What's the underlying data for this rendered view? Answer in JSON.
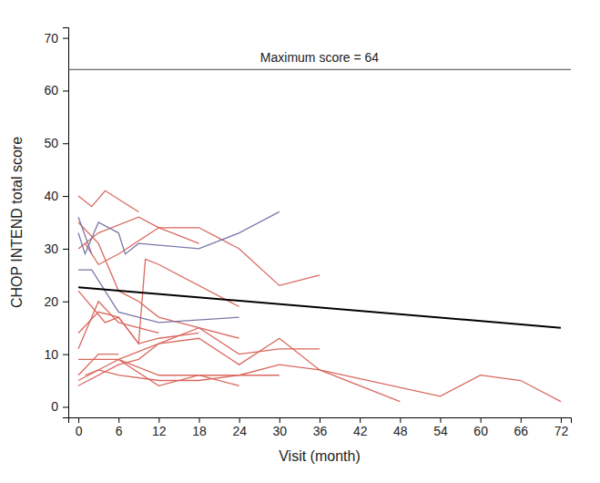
{
  "chart_data": {
    "type": "line",
    "x_label": "Visit (month)",
    "y_label": "CHOP INTEND total score",
    "xlim": [
      -1.5,
      73.5
    ],
    "xticks": [
      0,
      6,
      12,
      18,
      24,
      30,
      36,
      42,
      48,
      54,
      60,
      66,
      72
    ],
    "ylim": [
      -2,
      72
    ],
    "yticks": [
      0,
      10,
      20,
      30,
      40,
      50,
      60,
      70
    ],
    "grid": false,
    "annotations": [
      {
        "text": "Maximum score = 64",
        "y": 64
      }
    ],
    "series": [
      {
        "color": "#d9695f",
        "x": [
          0,
          2,
          4,
          9
        ],
        "values": [
          40,
          38,
          41,
          37
        ]
      },
      {
        "color": "#d9695f",
        "x": [
          1,
          3,
          6,
          12,
          18,
          24,
          30,
          36
        ],
        "values": [
          31,
          27,
          29,
          34,
          34,
          30,
          23,
          25
        ]
      },
      {
        "color": "#d9695f",
        "x": [
          0,
          3,
          9,
          12,
          18
        ],
        "values": [
          30,
          33,
          36,
          34,
          31
        ]
      },
      {
        "color": "#d9695f",
        "x": [
          0,
          3,
          6,
          9,
          12,
          18,
          24
        ],
        "values": [
          35,
          31,
          22,
          20,
          17,
          15,
          13
        ]
      },
      {
        "color": "#d9695f",
        "x": [
          0,
          4,
          6,
          9,
          10,
          12,
          24
        ],
        "values": [
          22,
          16,
          17,
          12,
          28,
          27,
          19
        ]
      },
      {
        "color": "#d9695f",
        "x": [
          0,
          3,
          6,
          12
        ],
        "values": [
          11,
          20,
          16,
          14
        ]
      },
      {
        "color": "#d9695f",
        "x": [
          0,
          3,
          6,
          9,
          12,
          18
        ],
        "values": [
          14,
          18,
          17,
          12,
          13,
          14
        ]
      },
      {
        "color": "#d9695f",
        "x": [
          0,
          6,
          12,
          18,
          24,
          30,
          36
        ],
        "values": [
          9,
          9,
          12,
          15,
          10,
          11,
          11
        ]
      },
      {
        "color": "#d9695f",
        "x": [
          0,
          6,
          9,
          12,
          18,
          24,
          30,
          36,
          48
        ],
        "values": [
          4,
          8,
          9,
          12,
          13,
          8,
          13,
          7,
          1
        ]
      },
      {
        "color": "#d9695f",
        "x": [
          6,
          12,
          24,
          30,
          36,
          54,
          60,
          66,
          72
        ],
        "values": [
          9,
          6,
          6,
          8,
          7,
          2,
          6,
          5,
          1
        ]
      },
      {
        "color": "#d9695f",
        "x": [
          0,
          3,
          6
        ],
        "values": [
          6,
          10,
          10
        ]
      },
      {
        "color": "#d9695f",
        "x": [
          0,
          6,
          12,
          18,
          24
        ],
        "values": [
          5,
          9,
          4,
          6,
          4
        ]
      },
      {
        "color": "#d9695f",
        "x": [
          1,
          3,
          6,
          12,
          18,
          24,
          30
        ],
        "values": [
          6,
          7,
          6,
          5,
          5,
          6,
          6
        ]
      },
      {
        "color": "#7b77a8",
        "x": [
          0,
          1,
          3,
          6,
          7,
          9,
          18,
          24,
          30
        ],
        "values": [
          33,
          29,
          35,
          33,
          29,
          31,
          30,
          33,
          37
        ]
      },
      {
        "color": "#7b77a8",
        "x": [
          0,
          2,
          6,
          9,
          12,
          24
        ],
        "values": [
          26,
          26,
          18,
          17,
          16,
          17
        ]
      },
      {
        "color": "#7b77a8",
        "x": [
          0,
          2
        ],
        "values": [
          36,
          29
        ]
      },
      {
        "color": "#000000",
        "x": [
          0,
          72
        ],
        "values": [
          22.7,
          15
        ]
      }
    ]
  }
}
